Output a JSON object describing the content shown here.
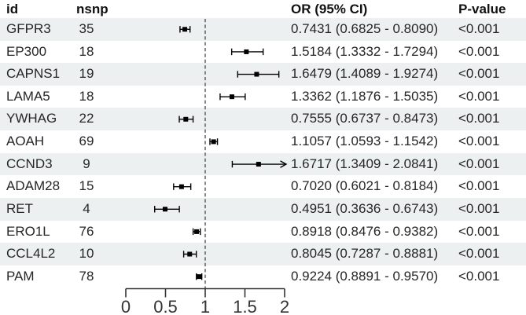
{
  "table": {
    "headers": {
      "id": "id",
      "nsnp": "nsnp",
      "or_ci": "OR (95% CI)",
      "p_value": "P-value"
    }
  },
  "chart_data": {
    "type": "forest",
    "xlim": [
      0,
      2
    ],
    "x_ticks": [
      0,
      0.5,
      1,
      1.5,
      2
    ],
    "reference_line": 1,
    "grid": false,
    "columns": [
      "id",
      "nsnp",
      "OR (95% CI)",
      "P-value"
    ],
    "rows": [
      {
        "id": "GFPR3",
        "nsnp": 35,
        "or": 0.7431,
        "ci_low": 0.6825,
        "ci_high": 0.809,
        "or_ci_text": "0.7431 (0.6825 - 0.8090)",
        "p_value": "<0.001"
      },
      {
        "id": "EP300",
        "nsnp": 18,
        "or": 1.5184,
        "ci_low": 1.3332,
        "ci_high": 1.7294,
        "or_ci_text": "1.5184 (1.3332 - 1.7294)",
        "p_value": "<0.001"
      },
      {
        "id": "CAPNS1",
        "nsnp": 19,
        "or": 1.6479,
        "ci_low": 1.4089,
        "ci_high": 1.9274,
        "or_ci_text": "1.6479 (1.4089 - 1.9274)",
        "p_value": "<0.001"
      },
      {
        "id": "LAMA5",
        "nsnp": 18,
        "or": 1.3362,
        "ci_low": 1.1876,
        "ci_high": 1.5035,
        "or_ci_text": "1.3362 (1.1876 - 1.5035)",
        "p_value": "<0.001"
      },
      {
        "id": "YWHAG",
        "nsnp": 22,
        "or": 0.7555,
        "ci_low": 0.6737,
        "ci_high": 0.8473,
        "or_ci_text": "0.7555 (0.6737 - 0.8473)",
        "p_value": "<0.001"
      },
      {
        "id": "AOAH",
        "nsnp": 69,
        "or": 1.1057,
        "ci_low": 1.0593,
        "ci_high": 1.1542,
        "or_ci_text": "1.1057 (1.0593 - 1.1542)",
        "p_value": "<0.001"
      },
      {
        "id": "CCND3",
        "nsnp": 9,
        "or": 1.6717,
        "ci_low": 1.3409,
        "ci_high": 2.0841,
        "or_ci_text": "1.6717 (1.3409 - 2.0841)",
        "p_value": "<0.001"
      },
      {
        "id": "ADAM28",
        "nsnp": 15,
        "or": 0.702,
        "ci_low": 0.6021,
        "ci_high": 0.8184,
        "or_ci_text": "0.7020 (0.6021 - 0.8184)",
        "p_value": "<0.001"
      },
      {
        "id": "RET",
        "nsnp": 4,
        "or": 0.4951,
        "ci_low": 0.3636,
        "ci_high": 0.6743,
        "or_ci_text": "0.4951 (0.3636 - 0.6743)",
        "p_value": "<0.001"
      },
      {
        "id": "ERO1L",
        "nsnp": 76,
        "or": 0.8918,
        "ci_low": 0.8476,
        "ci_high": 0.9382,
        "or_ci_text": "0.8918 (0.8476 - 0.9382)",
        "p_value": "<0.001"
      },
      {
        "id": "CCL4L2",
        "nsnp": 10,
        "or": 0.8045,
        "ci_low": 0.7287,
        "ci_high": 0.8881,
        "or_ci_text": "0.8045 (0.7287 - 0.8881)",
        "p_value": "<0.001"
      },
      {
        "id": "PAM",
        "nsnp": 78,
        "or": 0.9224,
        "ci_low": 0.8891,
        "ci_high": 0.957,
        "or_ci_text": "0.9224 (0.8891 - 0.9570)",
        "p_value": "<0.001"
      }
    ]
  },
  "colors": {
    "stripe": "#edf0f1",
    "row_text": "#262626",
    "header_text": "#111111",
    "marker": "#000000",
    "axis": "#333333",
    "reference_line": "#3a3a3a"
  }
}
